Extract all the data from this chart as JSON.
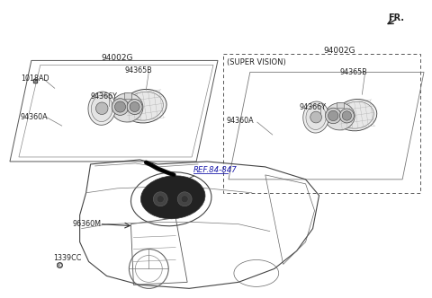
{
  "bg": "#ffffff",
  "tc": "#222222",
  "lc": "#555555",
  "figsize": [
    4.8,
    3.32
  ],
  "dpi": 100,
  "fr_label": "FR.",
  "labels": {
    "left_box_top": "94002G",
    "left_part1": "1018AD",
    "left_part2": "94365B",
    "left_part3": "94366Y",
    "left_part4": "94360A",
    "right_box_top": "94002G",
    "right_part1": "94365B",
    "right_part2": "94366Y",
    "right_part3": "94360A",
    "super_vision": "(SUPER VISION)",
    "ref_label": "REF.84-847",
    "bottom_part1": "96360M",
    "bottom_part2": "1339CC"
  }
}
